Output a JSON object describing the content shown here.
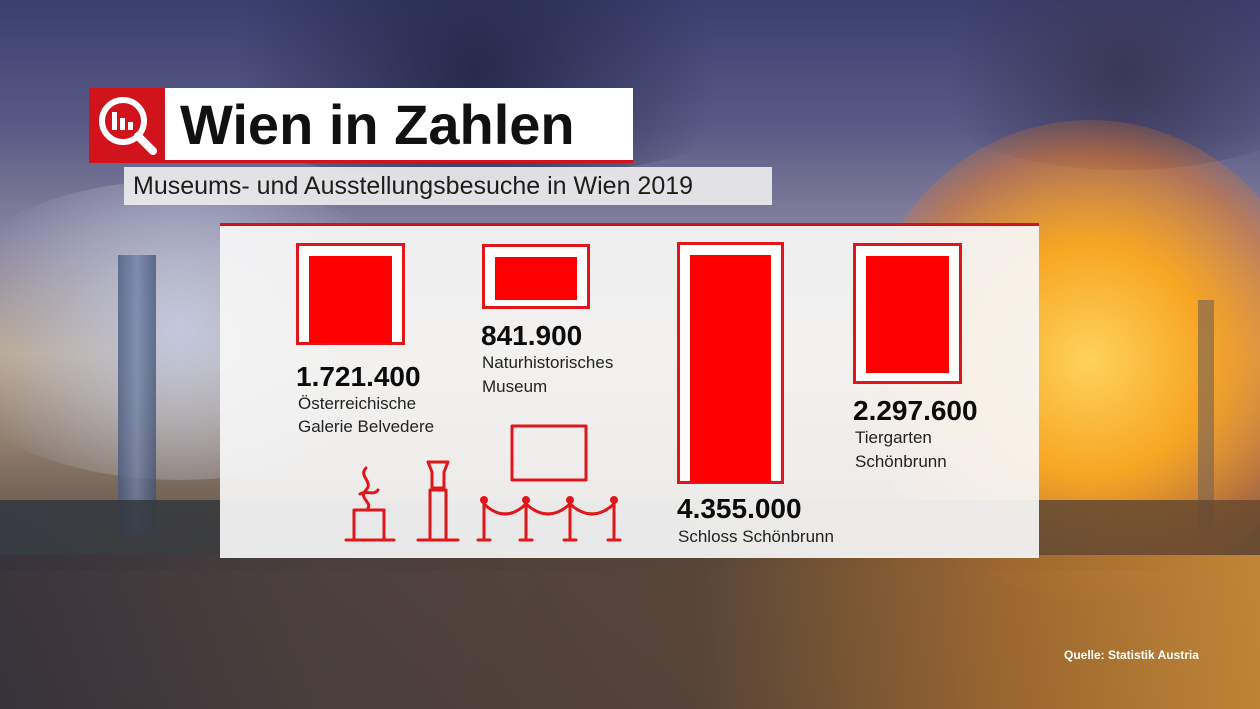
{
  "header": {
    "title": "Wien in Zahlen",
    "subtitle": "Museums- und Ausstellungsbesuche in Wien 2019",
    "logo_icon": "magnifier-bar-chart-icon"
  },
  "chart_data": {
    "type": "bar",
    "title": "Museums- und Ausstellungsbesuche in Wien 2019",
    "categories": [
      "Österreichische Galerie Belvedere",
      "Naturhistorisches Museum",
      "Schloss Schönbrunn",
      "Tiergarten Schönbrunn"
    ],
    "values": [
      1721400,
      841900,
      4355000,
      2297600
    ],
    "value_labels": [
      "1.721.400",
      "841.900",
      "4.355.000",
      "2.297.600"
    ],
    "label_lines": [
      [
        "Österreichische",
        "Galerie Belvedere"
      ],
      [
        "Naturhistorisches",
        "Museum"
      ],
      [
        "Schloss Schönbrunn"
      ],
      [
        "Tiergarten",
        "Schönbrunn"
      ]
    ],
    "encoding": "area of red filled rectangle in picture frame",
    "colors": {
      "fill": "#ff0000",
      "frame": "#e0161b"
    }
  },
  "source": "Quelle: Statistik Austria",
  "colors": {
    "accent": "#d1141b"
  }
}
